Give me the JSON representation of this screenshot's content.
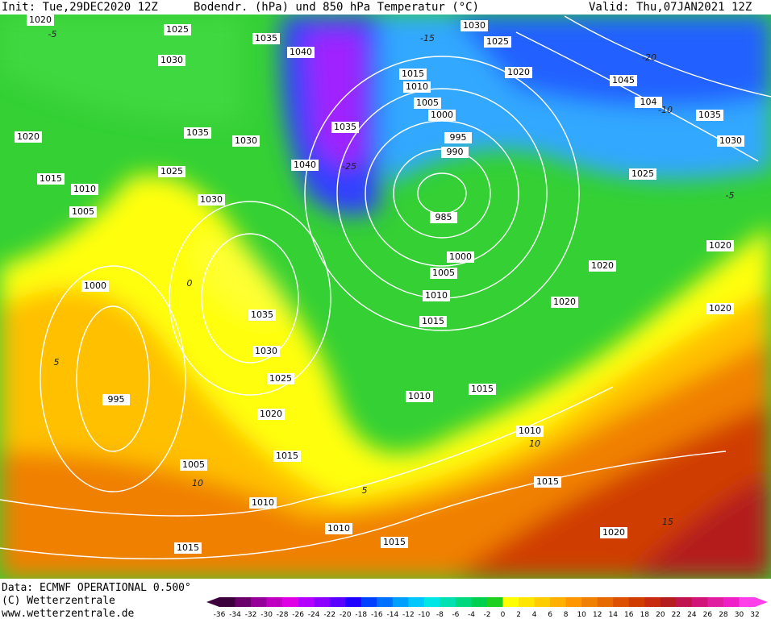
{
  "header": {
    "init": "Init: Tue,29DEC2020 12Z",
    "title": "Bodendr. (hPa) und 850 hPa Temperatur (°C)",
    "valid": "Valid: Thu,07JAN2021 12Z"
  },
  "map": {
    "isobar_labels": [
      1020,
      1025,
      1035,
      1040,
      1030,
      1030,
      1025,
      1020,
      1045,
      104,
      1035,
      1030,
      1015,
      1010,
      1005,
      1000,
      995,
      990,
      1035,
      1040,
      1020,
      1035,
      1030,
      1025,
      1015,
      1010,
      1005,
      1030,
      1025,
      985,
      1000,
      1005,
      1010,
      1015,
      1020,
      1020,
      1020,
      1020,
      1000,
      1035,
      1030,
      1025,
      995,
      1010,
      1015,
      1020,
      1010,
      1015,
      1005,
      1015,
      1010,
      1010,
      1015,
      1020,
      1015
    ],
    "isotherm_labels": [
      -5,
      -15,
      -20,
      -10,
      -25,
      -5,
      0,
      5,
      10,
      5,
      10,
      15
    ]
  },
  "footer": {
    "data": "Data: ECMWF OPERATIONAL 0.500°",
    "copyright": "(C) Wetterzentrale",
    "url": "www.wetterzentrale.de"
  },
  "colorbar": {
    "labels": [
      -36,
      -34,
      -32,
      -30,
      -28,
      -26,
      -24,
      -22,
      -20,
      -18,
      -16,
      -14,
      -12,
      -10,
      -8,
      -6,
      -4,
      -2,
      0,
      2,
      4,
      6,
      8,
      10,
      12,
      14,
      16,
      18,
      20,
      22,
      24,
      26,
      28,
      30,
      32
    ],
    "colors": [
      "#3c003c",
      "#6a006a",
      "#96009a",
      "#c000c0",
      "#e000e6",
      "#b400ff",
      "#8c00ff",
      "#5a00ff",
      "#2000ff",
      "#0040ff",
      "#0070ff",
      "#00a0ff",
      "#00c8ff",
      "#00e6e6",
      "#00e0b0",
      "#00d880",
      "#00d050",
      "#20d020",
      "#ffff00",
      "#ffe600",
      "#ffcc00",
      "#ffb000",
      "#ff9600",
      "#f08000",
      "#e66a00",
      "#dc5000",
      "#d03c00",
      "#c82a10",
      "#b41e1e",
      "#c01450",
      "#d01478",
      "#e01ea0",
      "#f020c8",
      "#ff40e8"
    ]
  }
}
